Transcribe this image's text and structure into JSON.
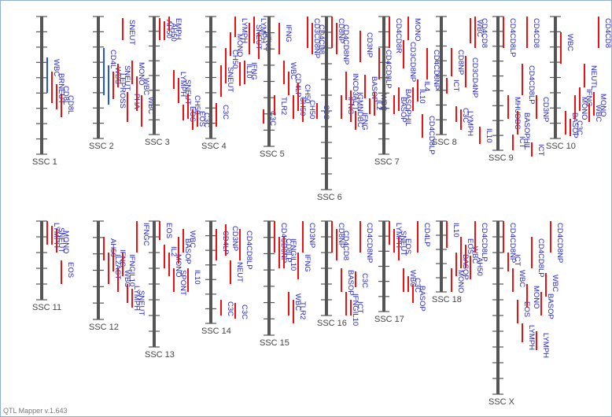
{
  "app": {
    "footer": "QTL Mapper v.1.643"
  },
  "colors": {
    "axis": "#555555",
    "bar_red": "#ee1111",
    "bar_blue": "#2255ee",
    "label": "#2222cc",
    "chrom_label": "#444444"
  },
  "chromosomes": [
    {
      "name": "SSC 1",
      "row": 0,
      "pos": 0,
      "len": 175,
      "qtl": [
        {
          "label": "WBC",
          "off": 52,
          "h": 45,
          "c": "b"
        },
        {
          "label": "BRNEUT",
          "off": 70,
          "h": 40,
          "c": "r"
        },
        {
          "label": "CD8L",
          "off": 86,
          "h": 32,
          "c": "r"
        },
        {
          "label": "CD8L",
          "off": 98,
          "h": 30,
          "c": "r"
        }
      ]
    },
    {
      "name": "SSC 2",
      "row": 0,
      "pos": 1,
      "len": 155,
      "qtl": [
        {
          "label": "CD4L",
          "off": 40,
          "h": 60,
          "c": "b"
        },
        {
          "label": "WBC",
          "off": 62,
          "h": 50,
          "c": "b"
        },
        {
          "label": "LEPROSS",
          "off": 70,
          "h": 35,
          "c": "r"
        },
        {
          "label": "SNEUT",
          "off": 60,
          "h": 30,
          "c": "r"
        },
        {
          "label": "SNEUT",
          "off": 2,
          "h": 28,
          "c": "r"
        },
        {
          "label": "PHA",
          "off": 96,
          "h": 38,
          "c": "r"
        },
        {
          "label": "MONO",
          "off": 56,
          "h": 30,
          "c": "r"
        },
        {
          "label": "WBC",
          "off": 76,
          "h": 44,
          "c": "r"
        },
        {
          "label": "WBC",
          "off": 100,
          "h": 40,
          "c": "r"
        }
      ]
    },
    {
      "name": "SSC 3",
      "row": 0,
      "pos": 2,
      "len": 150,
      "qtl": [
        {
          "label": "AH50",
          "off": 2,
          "h": 28,
          "c": "r"
        },
        {
          "label": "AH50",
          "off": 6,
          "h": 24,
          "c": "r"
        },
        {
          "label": "EMPH",
          "off": 0,
          "h": 18,
          "c": "r"
        },
        {
          "label": "LYMPH",
          "off": 68,
          "h": 24,
          "c": "r"
        },
        {
          "label": "SNEUT",
          "off": 78,
          "h": 32,
          "c": "r"
        },
        {
          "label": "EOS",
          "off": 112,
          "h": 20,
          "c": "r"
        },
        {
          "label": "CH50",
          "off": 98,
          "h": 32,
          "c": "r"
        },
        {
          "label": "EOS",
          "off": 118,
          "h": 26,
          "c": "r"
        },
        {
          "label": "C3C",
          "off": 120,
          "h": 20,
          "c": "r"
        }
      ]
    },
    {
      "name": "SSC 4",
      "row": 0,
      "pos": 3,
      "len": 155,
      "qtl": [
        {
          "label": "C3C",
          "off": 110,
          "h": 30,
          "c": "r"
        },
        {
          "label": "SNEUT",
          "off": 62,
          "h": 40,
          "c": "r"
        },
        {
          "label": "CH50",
          "off": 40,
          "h": 45,
          "c": "r"
        },
        {
          "label": "MONO",
          "off": 20,
          "h": 30,
          "c": "r"
        },
        {
          "label": "LYMPH",
          "off": 0,
          "h": 26,
          "c": "r"
        },
        {
          "label": "IL10",
          "off": 58,
          "h": 30,
          "c": "r"
        },
        {
          "label": "IFNG",
          "off": 56,
          "h": 30,
          "c": "r"
        },
        {
          "label": "SNEUT",
          "off": 8,
          "h": 40,
          "c": "r"
        },
        {
          "label": "LYMPH",
          "off": 0,
          "h": 34,
          "c": "r"
        },
        {
          "label": "IFNG",
          "off": 20,
          "h": 34,
          "c": "r"
        },
        {
          "label": "C3C",
          "off": 118,
          "h": 18,
          "c": "r"
        }
      ]
    },
    {
      "name": "SSC 5",
      "row": 0,
      "pos": 4,
      "len": 165,
      "qtl": [
        {
          "label": "TLR2",
          "off": 100,
          "h": 25,
          "c": "r"
        },
        {
          "label": "IFNG",
          "off": 8,
          "h": 40,
          "c": "r"
        },
        {
          "label": "WBC",
          "off": 56,
          "h": 30,
          "c": "r"
        },
        {
          "label": "CD4LP",
          "off": 70,
          "h": 30,
          "c": "r"
        },
        {
          "label": "CH50",
          "off": 100,
          "h": 30,
          "c": "r"
        },
        {
          "label": "CH50",
          "off": 84,
          "h": 36,
          "c": "r"
        },
        {
          "label": "CH50",
          "off": 104,
          "h": 30,
          "c": "r"
        },
        {
          "label": "CD3CD8NP",
          "off": 0,
          "h": 40,
          "c": "r"
        },
        {
          "label": "CD4CD8",
          "off": 8,
          "h": 40,
          "c": "r"
        },
        {
          "label": "C3C",
          "off": 110,
          "h": 20,
          "c": "r"
        }
      ]
    },
    {
      "name": "SSC 6",
      "row": 0,
      "pos": 5,
      "len": 220,
      "qtl": [
        {
          "label": "CD8NP",
          "off": 0,
          "h": 40,
          "c": "r"
        },
        {
          "label": "CD4CD8NP",
          "off": 8,
          "h": 40,
          "c": "r"
        },
        {
          "label": "IFNG",
          "off": 100,
          "h": 30,
          "c": "r"
        },
        {
          "label": "INCD3ACT",
          "off": 70,
          "h": 36,
          "c": "r"
        },
        {
          "label": "IGMNDBC",
          "off": 94,
          "h": 40,
          "c": "r"
        },
        {
          "label": "IFNG",
          "off": 120,
          "h": 24,
          "c": "r"
        },
        {
          "label": "CD3NP",
          "off": 18,
          "h": 40,
          "c": "r"
        },
        {
          "label": "BASOP",
          "off": 74,
          "h": 30,
          "c": "r"
        },
        {
          "label": "IL2",
          "off": 104,
          "h": 20,
          "c": "r"
        },
        {
          "label": "WBC",
          "off": 96,
          "h": 30,
          "c": "r"
        },
        {
          "label": "CD4CD8LP",
          "off": 40,
          "h": 40,
          "c": "r"
        }
      ]
    },
    {
      "name": "SSC 7",
      "row": 0,
      "pos": 6,
      "len": 175,
      "qtl": [
        {
          "label": "CD4CD8R",
          "off": 0,
          "h": 40,
          "c": "r"
        },
        {
          "label": "BASOP",
          "off": 100,
          "h": 24,
          "c": "r"
        },
        {
          "label": "BASOPHIL",
          "off": 90,
          "h": 30,
          "c": "r"
        },
        {
          "label": "CD3CD8NP",
          "off": 30,
          "h": 36,
          "c": "r"
        },
        {
          "label": "MONO",
          "off": 0,
          "h": 30,
          "c": "r"
        },
        {
          "label": "IL10",
          "off": 90,
          "h": 30,
          "c": "r"
        },
        {
          "label": "IL4",
          "off": 80,
          "h": 28,
          "c": "r"
        },
        {
          "label": "CD4CD8LP",
          "off": 124,
          "h": 30,
          "c": "r"
        },
        {
          "label": "CD4CD8NP",
          "off": 40,
          "h": 40,
          "c": "r"
        }
      ]
    },
    {
      "name": "SSC 8",
      "row": 0,
      "pos": 7,
      "len": 150,
      "qtl": [
        {
          "label": "ICT",
          "off": 78,
          "h": 20,
          "c": "r"
        },
        {
          "label": "CD8NP",
          "off": 40,
          "h": 36,
          "c": "r"
        },
        {
          "label": "C3C",
          "off": 114,
          "h": 20,
          "c": "r"
        },
        {
          "label": "LYMPH",
          "off": 118,
          "h": 26,
          "c": "r"
        },
        {
          "label": "CD3CD4NP",
          "off": 50,
          "h": 40,
          "c": "r"
        },
        {
          "label": "WBC",
          "off": 2,
          "h": 32,
          "c": "r"
        },
        {
          "label": "CD4CD8",
          "off": 0,
          "h": 40,
          "c": "r"
        },
        {
          "label": "IL10",
          "off": 140,
          "h": 22,
          "c": "r"
        }
      ]
    },
    {
      "name": "SSC 9",
      "row": 0,
      "pos": 8,
      "len": 170,
      "qtl": [
        {
          "label": "CD4CD8LP",
          "off": 0,
          "h": 40,
          "c": "r"
        },
        {
          "label": "MHUDBC",
          "off": 100,
          "h": 30,
          "c": "r"
        },
        {
          "label": "ICT",
          "off": 150,
          "h": 20,
          "c": "r"
        },
        {
          "label": "BASOPHIL",
          "off": 120,
          "h": 30,
          "c": "r"
        },
        {
          "label": "CD4CD8LP",
          "off": 60,
          "h": 40,
          "c": "r"
        },
        {
          "label": "CD4CD8",
          "off": 0,
          "h": 40,
          "c": "r"
        },
        {
          "label": "ICT",
          "off": 160,
          "h": 18,
          "c": "r"
        },
        {
          "label": "CD3NP",
          "off": 100,
          "h": 30,
          "c": "r"
        }
      ]
    },
    {
      "name": "SSC 10",
      "row": 0,
      "pos": 9,
      "len": 155,
      "qtl": [
        {
          "label": "WBC",
          "off": 20,
          "h": 40,
          "c": "r"
        },
        {
          "label": "BASOP",
          "off": 120,
          "h": 30,
          "c": "r"
        },
        {
          "label": "C3C",
          "off": 130,
          "h": 22,
          "c": "r"
        },
        {
          "label": "MONO",
          "off": 100,
          "h": 30,
          "c": "r"
        },
        {
          "label": "IFNG",
          "off": 90,
          "h": 30,
          "c": "r"
        },
        {
          "label": "NEUTL",
          "off": 60,
          "h": 30,
          "c": "r"
        },
        {
          "label": "WBC",
          "off": 110,
          "h": 24,
          "c": "r"
        },
        {
          "label": "MONO",
          "off": 96,
          "h": 30,
          "c": "r"
        },
        {
          "label": "CD4CD8",
          "off": 0,
          "h": 40,
          "c": "r"
        }
      ]
    },
    {
      "name": "SSC 11",
      "row": 1,
      "pos": 0,
      "len": 100,
      "qtl": [
        {
          "label": "LYMPH",
          "off": 0,
          "h": 30,
          "c": "r"
        },
        {
          "label": "SNEUT",
          "off": 6,
          "h": 24,
          "c": "r"
        },
        {
          "label": "MONO",
          "off": 10,
          "h": 30,
          "c": "r"
        },
        {
          "label": "EOS",
          "off": 50,
          "h": 30,
          "c": "r"
        }
      ]
    },
    {
      "name": "SSC 12",
      "row": 1,
      "pos": 1,
      "len": 125,
      "qtl": [
        {
          "label": "AH50",
          "off": 20,
          "h": 30,
          "c": "r"
        },
        {
          "label": "IL2ACT",
          "off": 40,
          "h": 40,
          "c": "r"
        },
        {
          "label": "IFNG",
          "off": 34,
          "h": 30,
          "c": "r"
        },
        {
          "label": "WBC",
          "off": 60,
          "h": 30,
          "c": "r"
        },
        {
          "label": "IFNGIL10",
          "off": 40,
          "h": 30,
          "c": "r"
        },
        {
          "label": "LYMPH",
          "off": 80,
          "h": 24,
          "c": "r"
        },
        {
          "label": "SNEUT",
          "off": 86,
          "h": 24,
          "c": "r"
        },
        {
          "label": "IFNGC",
          "off": 0,
          "h": 40,
          "c": "r"
        }
      ]
    },
    {
      "name": "SSC 13",
      "row": 1,
      "pos": 2,
      "len": 160,
      "qtl": [
        {
          "label": "EOS",
          "off": 0,
          "h": 24,
          "c": "r"
        },
        {
          "label": "IL2",
          "off": 30,
          "h": 30,
          "c": "r"
        },
        {
          "label": "MONO",
          "off": 40,
          "h": 30,
          "c": "r"
        },
        {
          "label": "SPONT",
          "off": 60,
          "h": 30,
          "c": "r"
        },
        {
          "label": "BASOP",
          "off": 20,
          "h": 34,
          "c": "r"
        },
        {
          "label": "WBC",
          "off": 10,
          "h": 30,
          "c": "r"
        },
        {
          "label": "IL10",
          "off": 60,
          "h": 30,
          "c": "r"
        }
      ]
    },
    {
      "name": "SSC 14",
      "row": 1,
      "pos": 3,
      "len": 130,
      "qtl": [
        {
          "label": "CD4LP",
          "off": 10,
          "h": 40,
          "c": "r"
        },
        {
          "label": "C3C",
          "off": 100,
          "h": 20,
          "c": "r"
        },
        {
          "label": "CD3NP",
          "off": 4,
          "h": 40,
          "c": "r"
        },
        {
          "label": "NEUT",
          "off": 50,
          "h": 30,
          "c": "r"
        },
        {
          "label": "C3C",
          "off": 104,
          "h": 20,
          "c": "r"
        },
        {
          "label": "CD4CD8LP",
          "off": 10,
          "h": 40,
          "c": "r"
        }
      ]
    },
    {
      "name": "SSC 15",
      "row": 1,
      "pos": 4,
      "len": 145,
      "qtl": [
        {
          "label": "CD4CD8NP",
          "off": 0,
          "h": 40,
          "c": "r"
        },
        {
          "label": "CD8LP",
          "off": 20,
          "h": 40,
          "c": "r"
        },
        {
          "label": "IFNGIL10",
          "off": 20,
          "h": 40,
          "c": "r"
        },
        {
          "label": "WBC",
          "off": 90,
          "h": 30,
          "c": "r"
        },
        {
          "label": "TLR2",
          "off": 100,
          "h": 30,
          "c": "r"
        },
        {
          "label": "IFNG",
          "off": 40,
          "h": 34,
          "c": "r"
        },
        {
          "label": "CD3NP",
          "off": 0,
          "h": 40,
          "c": "r"
        }
      ]
    },
    {
      "name": "SSC 16",
      "row": 1,
      "pos": 5,
      "len": 120,
      "qtl": [
        {
          "label": "CD8NP",
          "off": 0,
          "h": 40,
          "c": "r"
        },
        {
          "label": "CD4CD8",
          "off": 10,
          "h": 40,
          "c": "r"
        },
        {
          "label": "BASOP",
          "off": 60,
          "h": 30,
          "c": "r"
        },
        {
          "label": "IFNGIL10",
          "off": 90,
          "h": 30,
          "c": "r"
        },
        {
          "label": "ICT",
          "off": 100,
          "h": 20,
          "c": "r"
        },
        {
          "label": "C3C",
          "off": 64,
          "h": 20,
          "c": "r"
        },
        {
          "label": "CD4CD8NP",
          "off": 0,
          "h": 40,
          "c": "r"
        }
      ]
    },
    {
      "name": "SSC 17",
      "row": 1,
      "pos": 6,
      "len": 115,
      "qtl": [
        {
          "label": "LYMPH",
          "off": 0,
          "h": 30,
          "c": "r"
        },
        {
          "label": "SNEUT",
          "off": 10,
          "h": 30,
          "c": "r"
        },
        {
          "label": "EOS",
          "off": 20,
          "h": 30,
          "c": "r"
        },
        {
          "label": "WBC",
          "off": 60,
          "h": 30,
          "c": "r"
        },
        {
          "label": "C3C",
          "off": 70,
          "h": 20,
          "c": "r"
        },
        {
          "label": "BASOP",
          "off": 80,
          "h": 24,
          "c": "r"
        },
        {
          "label": "CD4LP",
          "off": 0,
          "h": 40,
          "c": "r"
        }
      ]
    },
    {
      "name": "SSC 18",
      "row": 1,
      "pos": 7,
      "len": 90,
      "qtl": [
        {
          "label": "IL10",
          "off": 0,
          "h": 34,
          "c": "r"
        },
        {
          "label": "MONO",
          "off": 60,
          "h": 30,
          "c": "r"
        },
        {
          "label": "BASOP",
          "off": 40,
          "h": 30,
          "c": "r"
        },
        {
          "label": "EOS",
          "off": 20,
          "h": 40,
          "c": "r"
        },
        {
          "label": "WBC",
          "off": 30,
          "h": 30,
          "c": "r"
        },
        {
          "label": "AH50",
          "off": 44,
          "h": 30,
          "c": "r"
        },
        {
          "label": "CD4CD8LP",
          "off": 0,
          "h": 40,
          "c": "r"
        }
      ]
    },
    {
      "name": "SSC X",
      "row": 1,
      "pos": 8,
      "len": 220,
      "qtl": [
        {
          "label": "CD4CD8NP",
          "off": 0,
          "h": 40,
          "c": "r"
        },
        {
          "label": "ICT",
          "off": 40,
          "h": 24,
          "c": "r"
        },
        {
          "label": "WBC",
          "off": 60,
          "h": 30,
          "c": "r"
        },
        {
          "label": "EOS",
          "off": 100,
          "h": 30,
          "c": "r"
        },
        {
          "label": "LYMPH",
          "off": 130,
          "h": 24,
          "c": "r"
        },
        {
          "label": "MONO",
          "off": 80,
          "h": 30,
          "c": "r"
        },
        {
          "label": "CD4CD8LP",
          "off": 20,
          "h": 40,
          "c": "r"
        },
        {
          "label": "LYMPH",
          "off": 140,
          "h": 24,
          "c": "r"
        },
        {
          "label": "BASOP",
          "off": 90,
          "h": 30,
          "c": "r"
        },
        {
          "label": "WBC",
          "off": 66,
          "h": 30,
          "c": "r"
        },
        {
          "label": "CD4CD8NP",
          "off": 0,
          "h": 40,
          "c": "r"
        }
      ]
    }
  ]
}
